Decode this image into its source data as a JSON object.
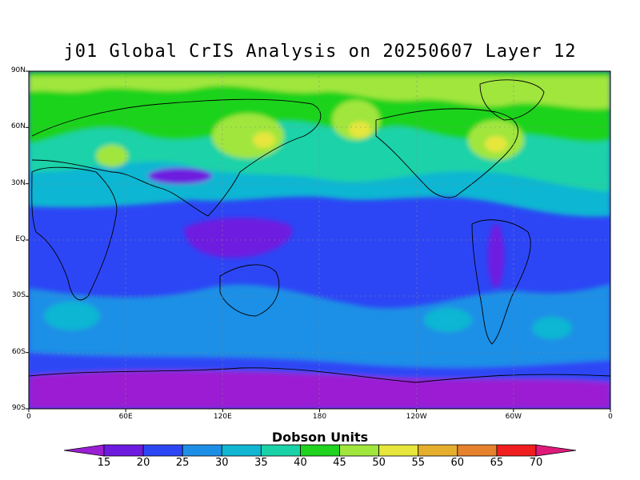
{
  "title": "j01 Global CrIS Analysis on 20250607 Layer 12",
  "colorbar": {
    "title": "Dobson Units",
    "tick_labels": [
      "15",
      "20",
      "25",
      "30",
      "35",
      "40",
      "45",
      "50",
      "55",
      "60",
      "65",
      "70"
    ],
    "colors": [
      "#9b1fd2",
      "#6e1be0",
      "#2d46f5",
      "#1e8fe6",
      "#10b6d2",
      "#1ad2a8",
      "#1fd31f",
      "#a0e63c",
      "#e6e63c",
      "#e6ae2d",
      "#e6822d",
      "#f01e1e",
      "#e01a7a"
    ]
  },
  "map": {
    "lat_labels": [
      "90N",
      "60N",
      "30N",
      "EQ",
      "30S",
      "60S",
      "90S"
    ],
    "lon_labels": [
      "0",
      "60E",
      "120E",
      "180",
      "120W",
      "60W",
      "0"
    ],
    "background_color": "#2d46f5"
  }
}
